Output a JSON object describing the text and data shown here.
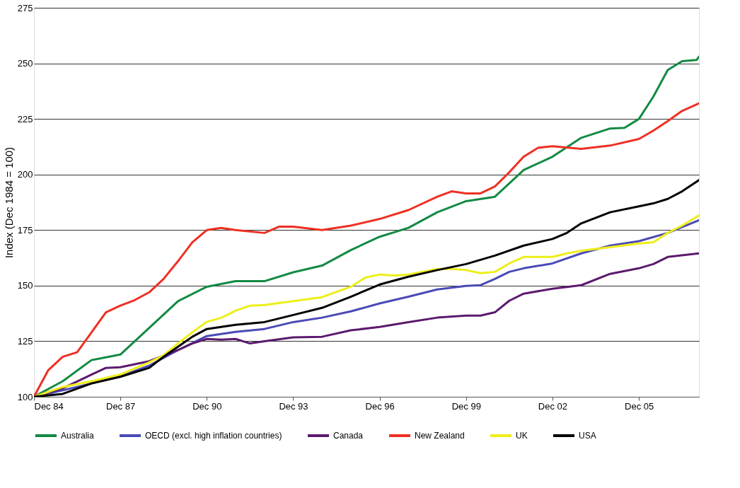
{
  "chart_data": {
    "type": "line",
    "ylabel": "Index (Dec 1984 = 100)",
    "xlim": [
      "1984-12",
      "2008-01"
    ],
    "ylim": [
      100,
      275
    ],
    "yticks": [
      100,
      125,
      150,
      175,
      200,
      225,
      250,
      275
    ],
    "xticks": [
      {
        "value": "1984-12",
        "label": "Dec 84"
      },
      {
        "value": "1987-12",
        "label": "Dec 87"
      },
      {
        "value": "1990-12",
        "label": "Dec 90"
      },
      {
        "value": "1993-12",
        "label": "Dec 93"
      },
      {
        "value": "1996-12",
        "label": "Dec 96"
      },
      {
        "value": "1999-12",
        "label": "Dec 99"
      },
      {
        "value": "2002-12",
        "label": "Dec 02"
      },
      {
        "value": "2005-12",
        "label": "Dec 05"
      }
    ],
    "grid": "y",
    "legend": "bottom",
    "line_style": "solid",
    "marker": "none",
    "series": [
      {
        "name": "Australia",
        "color": "#138a43",
        "x": [
          "1984-12",
          "1985-12",
          "1986-12",
          "1987-12",
          "1988-12",
          "1989-12",
          "1990-12",
          "1991-12",
          "1992-12",
          "1993-12",
          "1994-12",
          "1995-12",
          "1996-12",
          "1997-12",
          "1998-12",
          "1999-12",
          "2000-12",
          "2001-12",
          "2002-12",
          "2003-12",
          "2004-12",
          "2005-06",
          "2005-12",
          "2006-06",
          "2006-12",
          "2007-06",
          "2007-12",
          "2008-01"
        ],
        "values": [
          100,
          107,
          116.5,
          119,
          131,
          143,
          149.5,
          152,
          152,
          156,
          159,
          166,
          172,
          176,
          183,
          188,
          190,
          202,
          208,
          216.5,
          220.7,
          221,
          225,
          235,
          247,
          251,
          251.5,
          253
        ]
      },
      {
        "name": "OECD (excl. high inflation countries)",
        "color": "#4a4ab5",
        "x": [
          "1984-12",
          "1985-12",
          "1986-12",
          "1987-12",
          "1988-12",
          "1989-12",
          "1990-12",
          "1991-12",
          "1992-12",
          "1993-12",
          "1994-12",
          "1995-12",
          "1996-12",
          "1997-12",
          "1998-12",
          "1999-12",
          "2000-06",
          "2000-12",
          "2001-06",
          "2001-12",
          "2002-12",
          "2003-12",
          "2004-12",
          "2005-12",
          "2006-12",
          "2008-01"
        ],
        "values": [
          100,
          102.9,
          106,
          109.2,
          114,
          121,
          127.3,
          129.2,
          130.5,
          133.6,
          135.6,
          138.4,
          142,
          145,
          148.3,
          149.9,
          150.2,
          153,
          156.2,
          157.8,
          160,
          164.5,
          168,
          170,
          173.7,
          179.4
        ]
      },
      {
        "name": "Canada",
        "color": "#5c1a6e",
        "x": [
          "1984-12",
          "1985-12",
          "1986-12",
          "1987-06",
          "1987-12",
          "1988-12",
          "1989-12",
          "1990-06",
          "1990-12",
          "1991-06",
          "1991-12",
          "1992-06",
          "1992-12",
          "1993-12",
          "1994-12",
          "1995-12",
          "1996-12",
          "1997-12",
          "1998-12",
          "1999-12",
          "2000-06",
          "2000-12",
          "2001-06",
          "2001-12",
          "2002-12",
          "2003-12",
          "2004-12",
          "2005-12",
          "2006-06",
          "2006-12",
          "2008-01"
        ],
        "values": [
          100,
          103.8,
          110,
          113,
          113.3,
          116,
          121,
          124,
          126,
          125.7,
          126,
          124,
          125,
          126.7,
          127,
          129.9,
          131.4,
          133.6,
          135.6,
          136.5,
          136.5,
          138,
          143.2,
          146.4,
          148.6,
          150.2,
          155.3,
          157.8,
          159.7,
          162.9,
          164.5
        ]
      },
      {
        "name": "New Zealand",
        "color": "#ee3024",
        "x": [
          "1984-12",
          "1985-06",
          "1985-12",
          "1986-06",
          "1986-12",
          "1987-06",
          "1987-12",
          "1988-06",
          "1988-12",
          "1989-06",
          "1989-12",
          "1990-06",
          "1990-12",
          "1991-06",
          "1991-12",
          "1992-12",
          "1993-06",
          "1993-12",
          "1994-12",
          "1995-12",
          "1996-12",
          "1997-12",
          "1998-12",
          "1999-06",
          "1999-12",
          "2000-06",
          "2000-12",
          "2001-06",
          "2001-12",
          "2002-06",
          "2002-12",
          "2003-12",
          "2004-12",
          "2005-12",
          "2006-06",
          "2006-12",
          "2007-06",
          "2008-01"
        ],
        "values": [
          100,
          112,
          118,
          120,
          129,
          138,
          141,
          143.5,
          147,
          153,
          161,
          169.5,
          175,
          176,
          175,
          173.7,
          176.5,
          176.5,
          175,
          177,
          180,
          184,
          190,
          192.4,
          191.5,
          191.5,
          194.6,
          201,
          208,
          212,
          212.7,
          211.5,
          213,
          216,
          219.7,
          224,
          228.6,
          232
        ]
      },
      {
        "name": "UK",
        "color": "#eeee1a",
        "x": [
          "1984-12",
          "1985-12",
          "1986-12",
          "1987-12",
          "1988-12",
          "1989-06",
          "1989-12",
          "1990-06",
          "1990-12",
          "1991-06",
          "1991-12",
          "1992-06",
          "1992-12",
          "1993-12",
          "1994-12",
          "1995-12",
          "1996-06",
          "1996-12",
          "1997-06",
          "1997-12",
          "1998-12",
          "1999-06",
          "1999-12",
          "2000-06",
          "2000-12",
          "2001-06",
          "2001-12",
          "2002-12",
          "2003-06",
          "2003-12",
          "2004-12",
          "2005-12",
          "2006-06",
          "2006-12",
          "2007-06",
          "2008-01"
        ],
        "values": [
          100,
          104.4,
          107,
          110,
          115.5,
          118.7,
          124,
          129,
          133.7,
          135.5,
          138.7,
          141,
          141.3,
          143,
          144.8,
          149.5,
          153.6,
          155,
          154.6,
          155,
          157.5,
          157.5,
          157,
          155.6,
          156.2,
          160,
          162.9,
          162.9,
          164.5,
          165.7,
          167.3,
          169,
          169.5,
          173.7,
          177,
          181.6
        ]
      },
      {
        "name": "USA",
        "color": "#000000",
        "x": [
          "1984-12",
          "1985-12",
          "1986-12",
          "1987-12",
          "1988-12",
          "1989-06",
          "1989-12",
          "1990-06",
          "1990-12",
          "1991-12",
          "1992-12",
          "1993-12",
          "1994-12",
          "1995-12",
          "1996-12",
          "1997-12",
          "1998-12",
          "1999-12",
          "2000-12",
          "2001-12",
          "2002-12",
          "2003-06",
          "2003-12",
          "2004-12",
          "2005-12",
          "2006-06",
          "2006-12",
          "2007-06",
          "2008-01"
        ],
        "values": [
          100,
          101.3,
          106,
          109,
          113,
          118,
          122.5,
          127,
          130.5,
          132.4,
          133.6,
          136.8,
          140,
          145,
          150.5,
          154,
          157,
          159.7,
          163.5,
          168,
          171,
          173.7,
          178,
          183,
          185.7,
          187,
          189,
          192.4,
          197.5
        ]
      }
    ]
  }
}
